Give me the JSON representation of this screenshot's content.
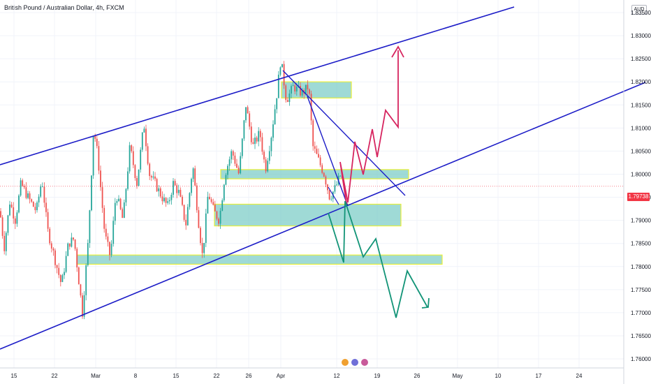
{
  "header": {
    "title": "British Pound / Australian Dollar, 4h, FXCM",
    "currency": "AUD"
  },
  "chart_data": {
    "type": "candlestick",
    "symbol": "British Pound / Australian Dollar",
    "timeframe": "4h",
    "source": "FXCM",
    "y_ticks": [
      "1.83500",
      "1.83000",
      "1.82500",
      "1.82000",
      "1.81500",
      "1.81000",
      "1.80500",
      "1.80000",
      "1.79500",
      "1.79000",
      "1.78500",
      "1.78000",
      "1.77500",
      "1.77000",
      "1.76500",
      "1.76000"
    ],
    "x_ticks": [
      "15",
      "22",
      "Mar",
      "8",
      "15",
      "22",
      "26",
      "Apr",
      "12",
      "19",
      "26",
      "May",
      "10",
      "17",
      "24"
    ],
    "ylim": [
      1.7565,
      1.8395
    ],
    "last_price": "1.79738",
    "last_price_value": 1.79738,
    "colors": {
      "up": "#26a69a",
      "down": "#ef5350",
      "channel": "#1c1cc7",
      "bull_path": "#d6245f",
      "bear_path": "#129477",
      "zone_fill": "#7fcec8",
      "zone_border": "#e8ef3a",
      "price_tag": "#f23645"
    },
    "zones": [
      {
        "name": "zone-top",
        "y_top": 1.82,
        "y_bottom": 1.8165
      },
      {
        "name": "zone-mid",
        "y_top": 1.801,
        "y_bottom": 1.799
      },
      {
        "name": "zone-lower",
        "y_top": 1.7935,
        "y_bottom": 1.7888
      },
      {
        "name": "zone-bottom",
        "y_top": 1.7825,
        "y_bottom": 1.7805
      }
    ]
  }
}
